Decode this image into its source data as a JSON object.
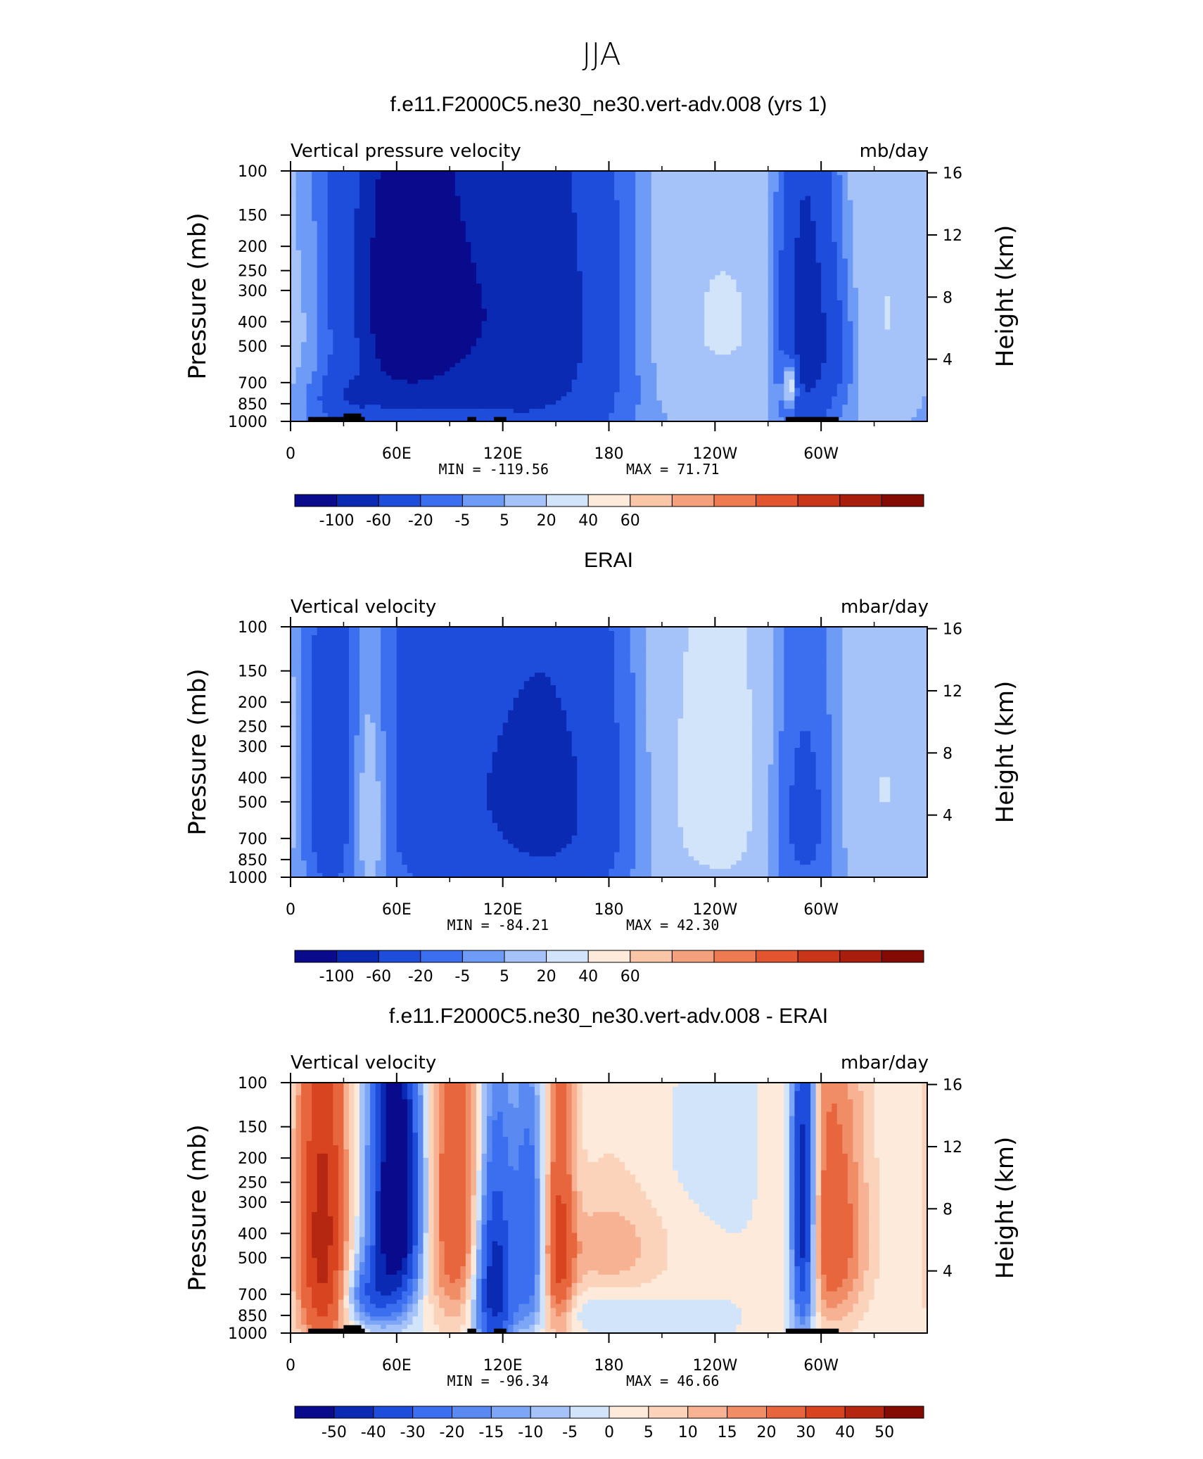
{
  "figure_title": "JJA",
  "chart_data": [
    {
      "type": "heatmap",
      "title": "f.e11.F2000C5.ne30_ne30.vert-adv.008 (yrs 1)",
      "left_label": "Vertical pressure velocity",
      "right_label": "mb/day",
      "ylabel": "Pressure (mb)",
      "y2label": "Height (km)",
      "x_ticks": [
        "0",
        "60E",
        "120E",
        "180",
        "120W",
        "60W"
      ],
      "y_ticks": [
        "100",
        "150",
        "200",
        "250",
        "300",
        "400",
        "500",
        "700",
        "850",
        "1000"
      ],
      "y2_ticks": [
        "4",
        "8",
        "12",
        "16"
      ],
      "min_text": "MIN = -119.56",
      "max_text": "MAX = 71.71",
      "colorbar_labels": [
        "-100",
        "-60",
        "-20",
        "-5",
        "5",
        "20",
        "40",
        "60"
      ],
      "colorbar_colors": [
        "#0a0a8c",
        "#0a2ab4",
        "#1e4ddc",
        "#3c6ef0",
        "#6e9bf5",
        "#a5c3f8",
        "#d2e4fa",
        "#fdeadb",
        "#f9c6a8",
        "#f4a07c",
        "#ee7a52",
        "#e3552f",
        "#c93518",
        "#a81d0c",
        "#840a04"
      ],
      "blobs": [
        {
          "lon": 62,
          "lev": 320,
          "lw": 22,
          "lh": 260,
          "v": -110
        },
        {
          "lon": 65,
          "lev": 450,
          "lw": 35,
          "lh": 600,
          "v": -45
        },
        {
          "lon": 110,
          "lev": 400,
          "lw": 40,
          "lh": 500,
          "v": -40
        },
        {
          "lon": 140,
          "lev": 380,
          "lw": 30,
          "lh": 500,
          "v": -45
        },
        {
          "lon": 160,
          "lev": 500,
          "lw": 30,
          "lh": 600,
          "v": -25
        },
        {
          "lon": 290,
          "lev": 400,
          "lw": 10,
          "lh": 400,
          "v": -80
        },
        {
          "lon": 303,
          "lev": 500,
          "lw": 14,
          "lh": 300,
          "v": -45
        },
        {
          "lon": 35,
          "lev": 800,
          "lw": 12,
          "lh": 120,
          "v": -40
        },
        {
          "lon": 20,
          "lev": 400,
          "lw": 12,
          "lh": 250,
          "v": 18
        },
        {
          "lon": 42,
          "lev": 400,
          "lw": 8,
          "lh": 300,
          "v": 28
        },
        {
          "lon": 230,
          "lev": 400,
          "lw": 60,
          "lh": 500,
          "v": 22
        },
        {
          "lon": 335,
          "lev": 400,
          "lw": 30,
          "lh": 450,
          "v": 20
        },
        {
          "lon": 283,
          "lev": 700,
          "lw": 3,
          "lh": 120,
          "v": 70
        }
      ],
      "land": [
        [
          10,
          30,
          960
        ],
        [
          30,
          40,
          930
        ],
        [
          40,
          42,
          960
        ],
        [
          100,
          105,
          960
        ],
        [
          115,
          122,
          960
        ],
        [
          280,
          310,
          960
        ]
      ]
    },
    {
      "type": "heatmap",
      "title": "ERAI",
      "left_label": "Vertical velocity",
      "right_label": "mbar/day",
      "ylabel": "Pressure (mb)",
      "y2label": "Height (km)",
      "x_ticks": [
        "0",
        "60E",
        "120E",
        "180",
        "120W",
        "60W"
      ],
      "y_ticks": [
        "100",
        "150",
        "200",
        "250",
        "300",
        "400",
        "500",
        "700",
        "850",
        "1000"
      ],
      "y2_ticks": [
        "4",
        "8",
        "12",
        "16"
      ],
      "min_text": "MIN = -84.21",
      "max_text": "MAX = 42.30",
      "colorbar_labels": [
        "-100",
        "-60",
        "-20",
        "-5",
        "5",
        "20",
        "40",
        "60"
      ],
      "colorbar_colors": [
        "#0a0a8c",
        "#0a2ab4",
        "#1e4ddc",
        "#3c6ef0",
        "#6e9bf5",
        "#a5c3f8",
        "#d2e4fa",
        "#fdeadb",
        "#f9c6a8",
        "#f4a07c",
        "#ee7a52",
        "#e3552f",
        "#c93518",
        "#a81d0c",
        "#840a04"
      ],
      "blobs": [
        {
          "lon": 22,
          "lev": 450,
          "lw": 10,
          "lh": 500,
          "v": -40
        },
        {
          "lon": 85,
          "lev": 420,
          "lw": 35,
          "lh": 500,
          "v": -40
        },
        {
          "lon": 150,
          "lev": 500,
          "lw": 30,
          "lh": 500,
          "v": -70
        },
        {
          "lon": 290,
          "lev": 550,
          "lw": 14,
          "lh": 450,
          "v": -45
        },
        {
          "lon": 45,
          "lev": 520,
          "lw": 9,
          "lh": 400,
          "v": 35
        },
        {
          "lon": 240,
          "lev": 450,
          "lw": 45,
          "lh": 600,
          "v": 28
        },
        {
          "lon": 340,
          "lev": 450,
          "lw": 25,
          "lh": 500,
          "v": 18
        }
      ],
      "land": []
    },
    {
      "type": "heatmap",
      "title": "f.e11.F2000C5.ne30_ne30.vert-adv.008 - ERAI",
      "left_label": "Vertical velocity",
      "right_label": "mbar/day",
      "ylabel": "Pressure (mb)",
      "y2label": "Height (km)",
      "x_ticks": [
        "0",
        "60E",
        "120E",
        "180",
        "120W",
        "60W"
      ],
      "y_ticks": [
        "100",
        "150",
        "200",
        "250",
        "300",
        "400",
        "500",
        "700",
        "850",
        "1000"
      ],
      "y2_ticks": [
        "4",
        "8",
        "12",
        "16"
      ],
      "min_text": "MIN = -96.34",
      "max_text": "MAX = 46.66",
      "colorbar_labels": [
        "-50",
        "-40",
        "-30",
        "-20",
        "-15",
        "-10",
        "-5",
        "0",
        "5",
        "10",
        "15",
        "20",
        "30",
        "40",
        "50"
      ],
      "colorbar_colors": [
        "#0a0a8c",
        "#0a2ab4",
        "#1e4ddc",
        "#3c6ef0",
        "#5a89f2",
        "#7ea6f6",
        "#a5c3f8",
        "#d2e4fa",
        "#fdeadb",
        "#fbd3bb",
        "#f6b292",
        "#f08c66",
        "#e8663d",
        "#d84420",
        "#b52710",
        "#840a04"
      ],
      "blobs": [
        {
          "lon": 18,
          "lev": 420,
          "lw": 10,
          "lh": 500,
          "v": 45
        },
        {
          "lon": 60,
          "lev": 300,
          "lw": 10,
          "lh": 300,
          "v": -70
        },
        {
          "lon": 45,
          "lev": 700,
          "lw": 10,
          "lh": 150,
          "v": -25
        },
        {
          "lon": 95,
          "lev": 300,
          "lw": 14,
          "lh": 400,
          "v": 30
        },
        {
          "lon": 115,
          "lev": 600,
          "lw": 8,
          "lh": 400,
          "v": -55
        },
        {
          "lon": 135,
          "lev": 450,
          "lw": 6,
          "lh": 300,
          "v": -30
        },
        {
          "lon": 152,
          "lev": 450,
          "lw": 6,
          "lh": 400,
          "v": 30
        },
        {
          "lon": 180,
          "lev": 400,
          "lw": 25,
          "lh": 300,
          "v": 14
        },
        {
          "lon": 290,
          "lev": 350,
          "lw": 5,
          "lh": 400,
          "v": -60
        },
        {
          "lon": 305,
          "lev": 400,
          "lw": 15,
          "lh": 350,
          "v": 28
        },
        {
          "lon": 180,
          "lev": 200,
          "lw": 40,
          "lh": 120,
          "v": -6
        },
        {
          "lon": 180,
          "lev": 800,
          "lw": 25,
          "lh": 120,
          "v": -9
        }
      ],
      "land": [
        [
          10,
          30,
          960
        ],
        [
          30,
          40,
          930
        ],
        [
          40,
          42,
          960
        ],
        [
          100,
          105,
          960
        ],
        [
          115,
          122,
          960
        ],
        [
          280,
          310,
          960
        ]
      ]
    }
  ]
}
